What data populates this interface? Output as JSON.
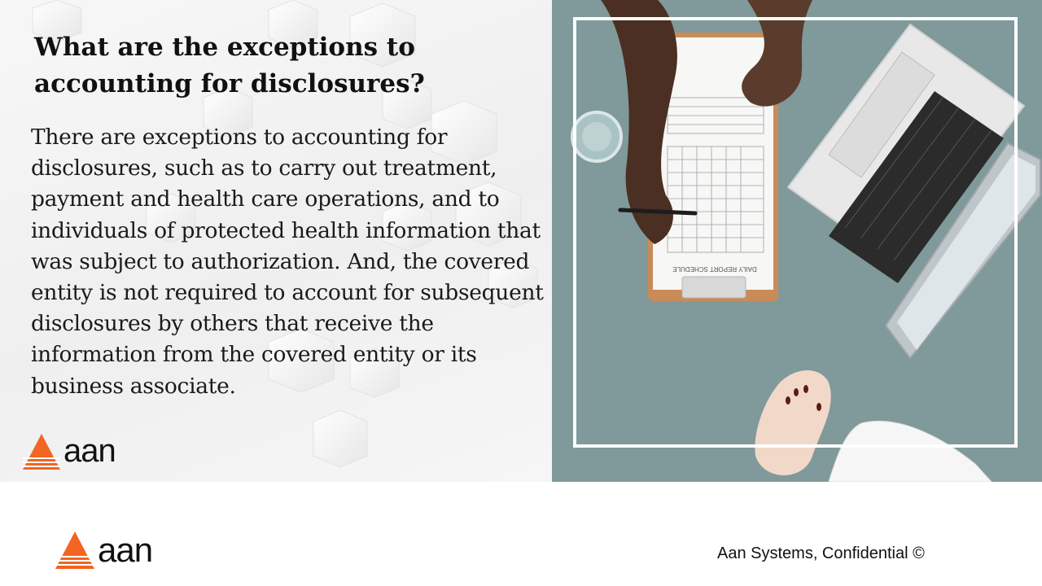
{
  "slide": {
    "title": "What are the exceptions to accounting for disclosures?",
    "body": "There are exceptions to accounting for disclosures, such as to carry out treatment, payment and health care operations, and to individuals of protected health information that was subject to authorization. And, the covered entity is not required to account for subsequent disclosures by others that receive the information from the covered entity or its business associate."
  },
  "logo": {
    "text": "aan",
    "accent_color": "#f26522"
  },
  "clipboard": {
    "heading": "DAILY REPORT SCHEDULE"
  },
  "footer": {
    "confidential": "Aan Systems, Confidential ©"
  }
}
